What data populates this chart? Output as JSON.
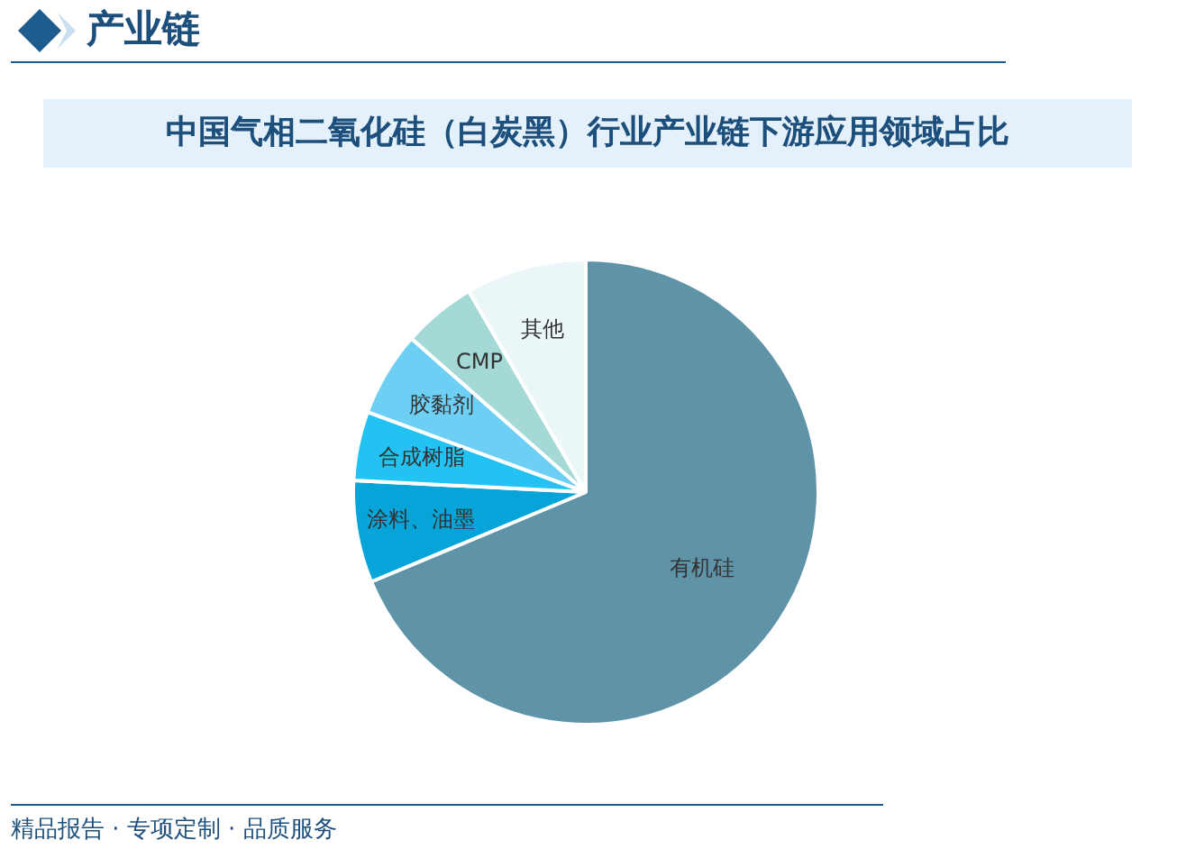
{
  "chart_data": {
    "type": "pie",
    "title": "中国气相二氧化硅（白炭黑）行业产业链下游应用领域占比",
    "subtitle": "产业链",
    "categories": [
      "有机硅",
      "涂料、油墨",
      "合成树脂",
      "胶黏剂",
      "CMP",
      "其他"
    ],
    "values": [
      68.7,
      7.1,
      4.8,
      5.9,
      5.1,
      8.4
    ],
    "colors": [
      "#5f93a8",
      "#06a4d8",
      "#22c3f3",
      "#6dcff4",
      "#a4d9d6",
      "#eaf6f7"
    ],
    "legend": false,
    "annotations": [
      "精品报告 · 专项定制 · 品质服务"
    ]
  }
}
